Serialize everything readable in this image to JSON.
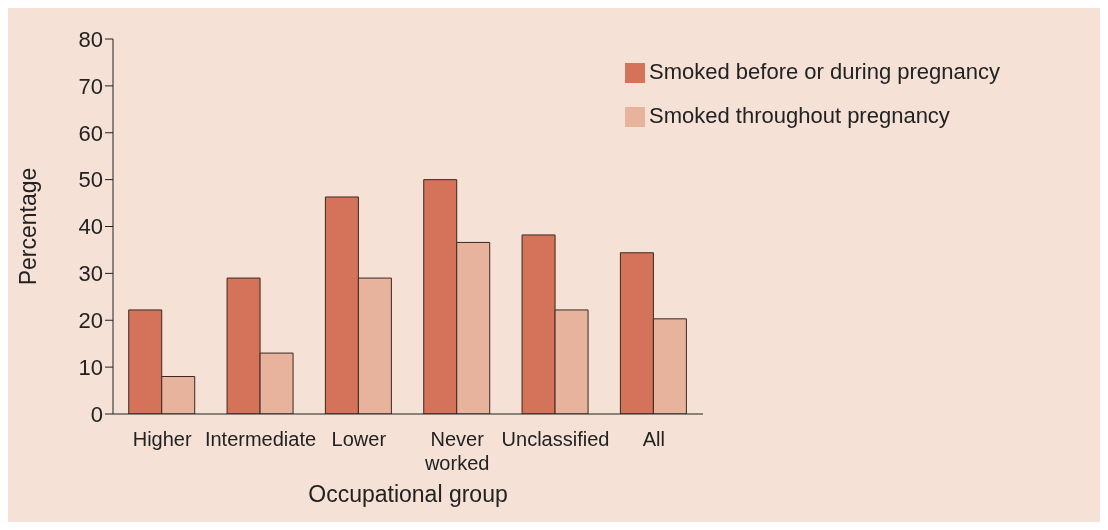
{
  "chart_data": {
    "type": "bar",
    "xlabel": "Occupational group",
    "ylabel": "Percentage",
    "categories": [
      "Higher",
      "Intermediate",
      "Lower",
      "Never worked",
      "Unclassified",
      "All"
    ],
    "series": [
      {
        "name": "Smoked before or during pregnancy",
        "color": "#d4735a",
        "values": [
          22.2,
          29,
          46.3,
          50,
          38.2,
          34.4
        ]
      },
      {
        "name": "Smoked throughout pregnancy",
        "color": "#e8b39c",
        "values": [
          8,
          13,
          29,
          36.6,
          22.2,
          20.3
        ]
      }
    ],
    "ylim": [
      0,
      80
    ],
    "yticks": [
      0,
      10,
      20,
      30,
      40,
      50,
      60,
      70,
      80
    ],
    "grid": false,
    "legend": "top right"
  }
}
